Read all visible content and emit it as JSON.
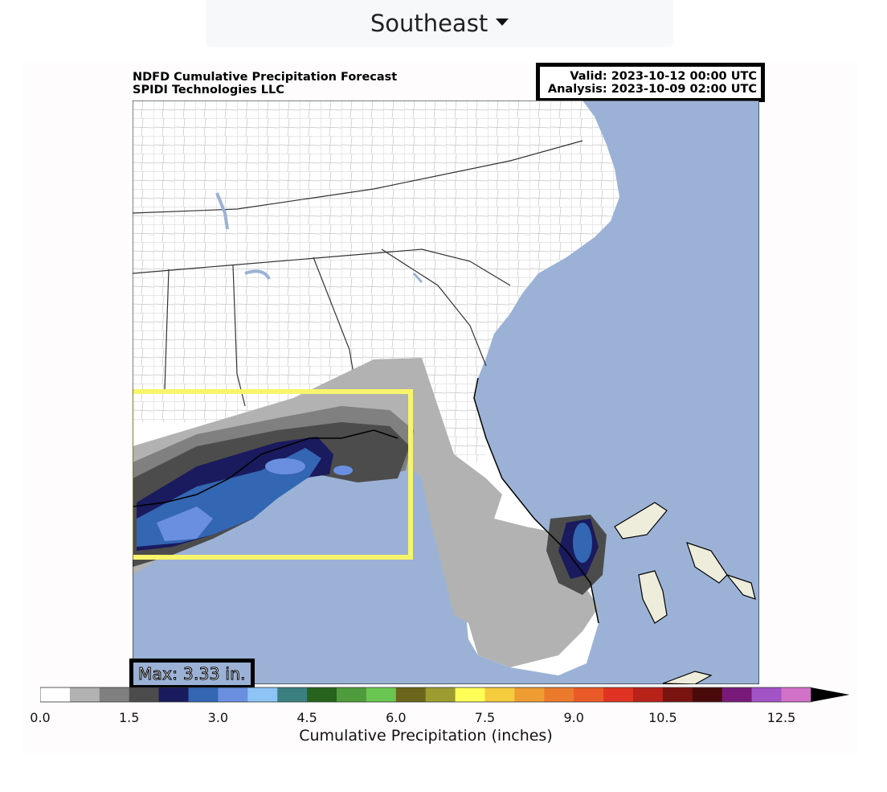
{
  "region_selector": {
    "label": "Southeast"
  },
  "header": {
    "title_line1": "NDFD Cumulative Precipitation Forecast",
    "title_line2": "SPIDI Technologies LLC",
    "valid": "Valid: 2023-10-12 00:00 UTC",
    "analysis": "Analysis: 2023-10-09 02:00 UTC"
  },
  "max_label": "Max: 3.33 in.",
  "colors": {
    "ocean": "#9bb2d6",
    "land": "#ffffff",
    "highlight_box": "#f7f56a",
    "bahamas": "#eeecdb"
  },
  "colorbar": {
    "title": "Cumulative Precipitation (inches)",
    "ticks": [
      "0.0",
      "1.5",
      "3.0",
      "4.5",
      "6.0",
      "7.5",
      "9.0",
      "10.5",
      "12.5"
    ],
    "tick_values": [
      0,
      1.5,
      3.0,
      4.5,
      6.0,
      7.5,
      9.0,
      10.5,
      12.5
    ],
    "bins_per_tick_gap": [
      3,
      3,
      3,
      3,
      3,
      3,
      3,
      4
    ],
    "colors": [
      "#ffffff",
      "#b2b2b2",
      "#808080",
      "#4c4c4c",
      "#1a1a5e",
      "#3366b3",
      "#6b8fe0",
      "#8cc4f5",
      "#3b8080",
      "#27631c",
      "#4f9c3c",
      "#69c751",
      "#6b661b",
      "#9c9c31",
      "#ffff57",
      "#f5cc3d",
      "#ef9c33",
      "#ec7a2d",
      "#ea5a28",
      "#e03323",
      "#b72219",
      "#7a1410",
      "#4a0a0a",
      "#791a7a",
      "#a253c6",
      "#d271c8"
    ]
  }
}
